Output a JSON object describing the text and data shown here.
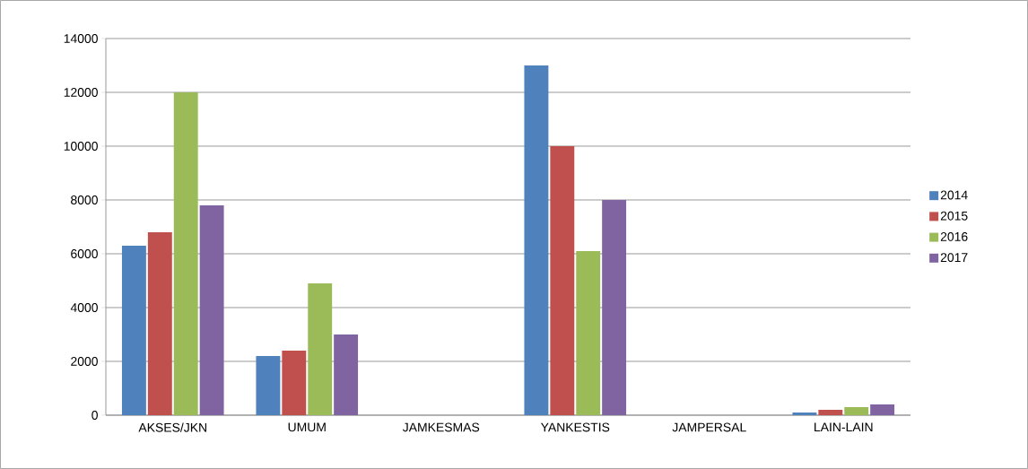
{
  "chart_data": {
    "type": "bar",
    "categories": [
      "AKSES/JKN",
      "UMUM",
      "JAMKESMAS",
      "YANKESTIS",
      "JAMPERSAL",
      "LAIN-LAIN"
    ],
    "series": [
      {
        "name": "2014",
        "color": "#4f81bd",
        "values": [
          6300,
          2200,
          null,
          13000,
          null,
          100
        ]
      },
      {
        "name": "2015",
        "color": "#c0504d",
        "values": [
          6800,
          2400,
          null,
          10000,
          null,
          200
        ]
      },
      {
        "name": "2016",
        "color": "#9bbb59",
        "values": [
          12000,
          4900,
          null,
          6100,
          null,
          300
        ]
      },
      {
        "name": "2017",
        "color": "#8064a2",
        "values": [
          7800,
          3000,
          null,
          8000,
          null,
          400
        ]
      }
    ],
    "ylim": [
      0,
      14000
    ],
    "yticks": [
      0,
      2000,
      4000,
      6000,
      8000,
      10000,
      12000,
      14000
    ],
    "grid": "y",
    "legend": "right"
  }
}
